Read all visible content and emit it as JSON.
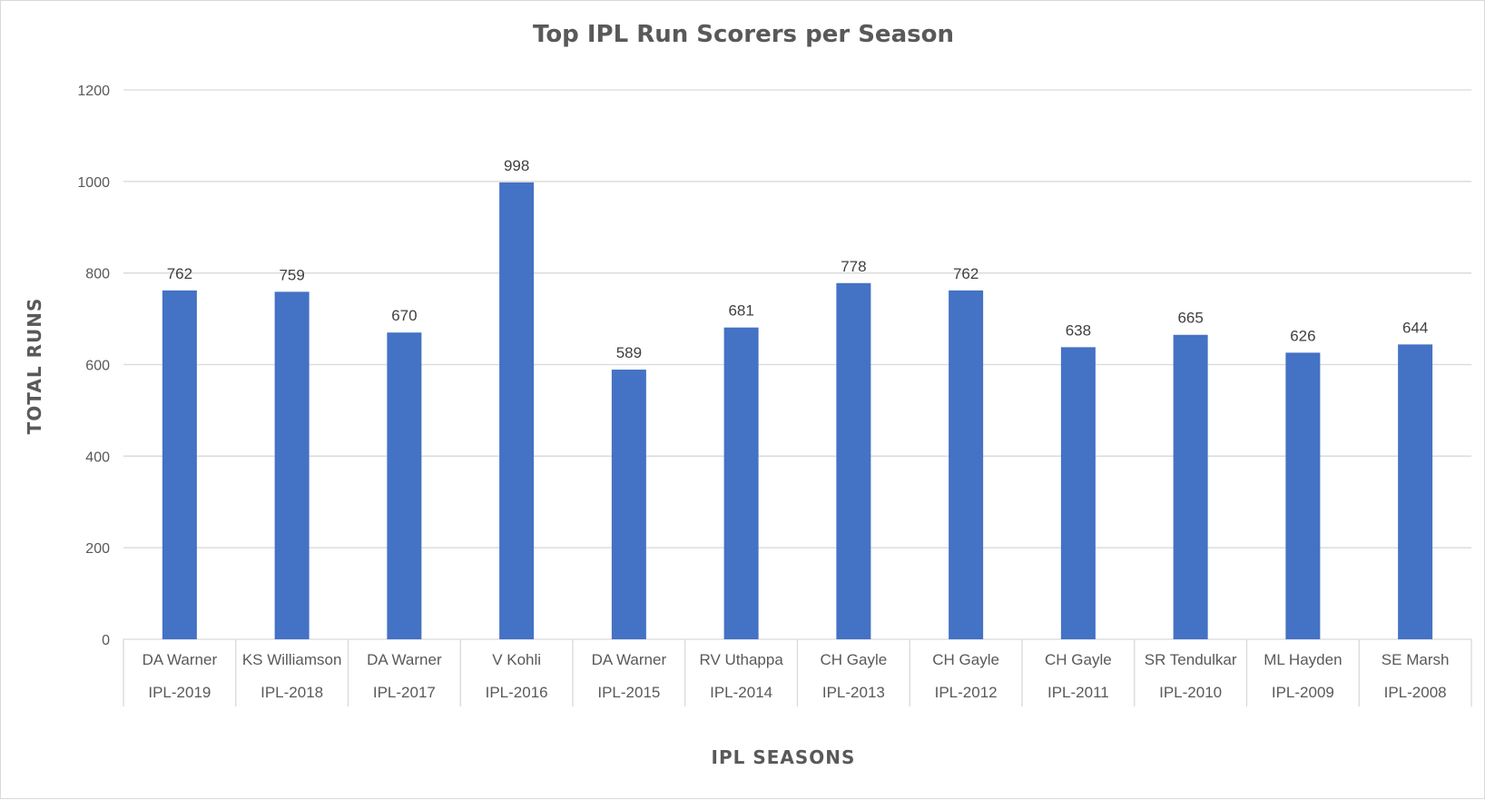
{
  "chart_data": {
    "type": "bar",
    "title": "Top IPL Run Scorers per Season",
    "xlabel": "IPL SEASONS",
    "ylabel": "TOTAL RUNS",
    "ylim": [
      0,
      1200
    ],
    "yticks": [
      0,
      200,
      400,
      600,
      800,
      1000,
      1200
    ],
    "grid": true,
    "legend": "none",
    "bar_color": "#4472C4",
    "categories": [
      {
        "player": "DA Warner",
        "season": "IPL-2019"
      },
      {
        "player": "KS Williamson",
        "season": "IPL-2018"
      },
      {
        "player": "DA Warner",
        "season": "IPL-2017"
      },
      {
        "player": "V Kohli",
        "season": "IPL-2016"
      },
      {
        "player": "DA Warner",
        "season": "IPL-2015"
      },
      {
        "player": "RV Uthappa",
        "season": "IPL-2014"
      },
      {
        "player": "CH Gayle",
        "season": "IPL-2013"
      },
      {
        "player": "CH Gayle",
        "season": "IPL-2012"
      },
      {
        "player": "CH Gayle",
        "season": "IPL-2011"
      },
      {
        "player": "SR Tendulkar",
        "season": "IPL-2010"
      },
      {
        "player": "ML Hayden",
        "season": "IPL-2009"
      },
      {
        "player": "SE Marsh",
        "season": "IPL-2008"
      }
    ],
    "values": [
      762,
      759,
      670,
      998,
      589,
      681,
      778,
      762,
      638,
      665,
      626,
      644
    ]
  }
}
